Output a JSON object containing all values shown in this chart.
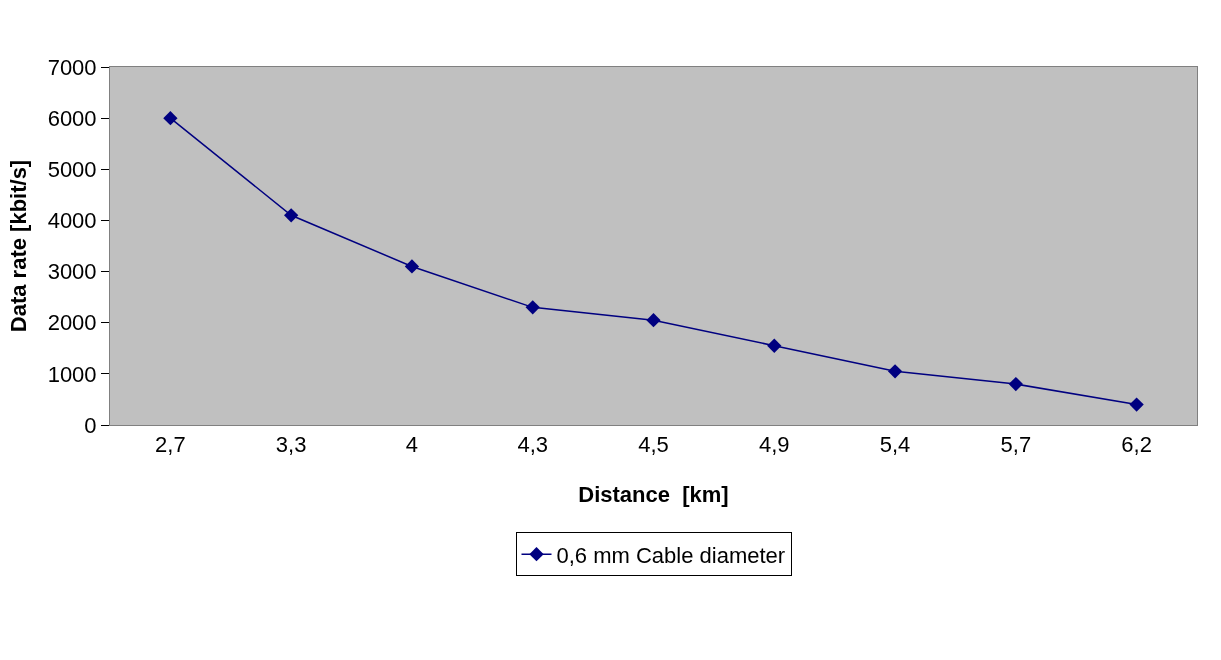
{
  "chart_data": {
    "type": "line",
    "xlabel": "Distance  [km]",
    "ylabel": "Data rate [kbit/s]",
    "categories": [
      "2,7",
      "3,3",
      "4",
      "4,3",
      "4,5",
      "4,9",
      "5,4",
      "5,7",
      "6,2"
    ],
    "series": [
      {
        "name": "0,6 mm Cable diameter",
        "color": "#000080",
        "values": [
          6000,
          4100,
          3100,
          2300,
          2050,
          1550,
          1050,
          800,
          400
        ]
      }
    ],
    "ylim": [
      0,
      7000
    ],
    "yticks": [
      0,
      1000,
      2000,
      3000,
      4000,
      5000,
      6000,
      7000
    ],
    "grid": false,
    "legend": "bottom",
    "marker": "diamond",
    "line_style": "solid"
  }
}
